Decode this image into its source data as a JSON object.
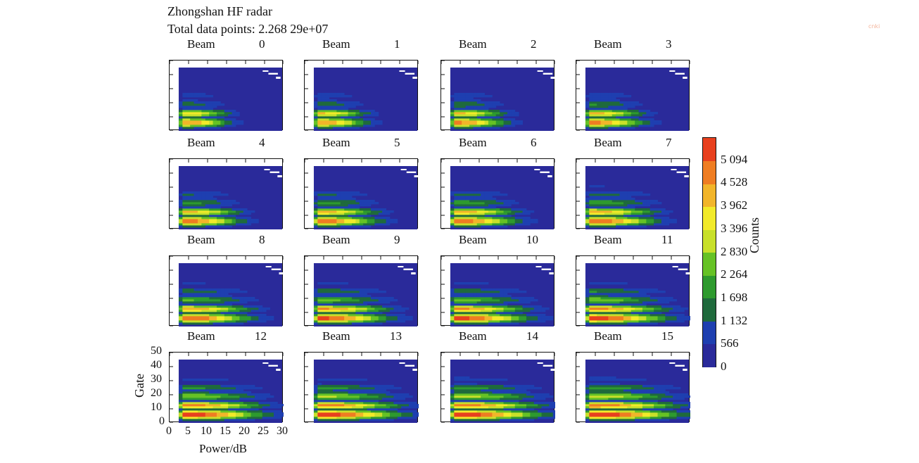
{
  "header": {
    "title": "Zhongshan HF radar",
    "subtitle": "Total data points: 2.268 29e+07"
  },
  "watermark": "cnki",
  "chart_data": {
    "type": "heatmap",
    "panel_prefix": "Beam",
    "panels": [
      0,
      1,
      2,
      3,
      4,
      5,
      6,
      7,
      8,
      9,
      10,
      11,
      12,
      13,
      14,
      15
    ],
    "xlabel": "Power/dB",
    "ylabel": "Gate",
    "xticks": [
      "0",
      "5",
      "10",
      "15",
      "20",
      "25",
      "30"
    ],
    "yticks": [
      "0",
      "10",
      "20",
      "30",
      "40",
      "50"
    ],
    "xlim": [
      0,
      30
    ],
    "ylim": [
      0,
      50
    ],
    "colorbar": {
      "label": "Counts",
      "ticks": [
        "0",
        "566",
        "1 132",
        "1 698",
        "2 264",
        "2 830",
        "3 396",
        "3 962",
        "4 528",
        "5 094"
      ],
      "vmin": 0,
      "vmax": 5660,
      "colors": [
        "#2a2a9a",
        "#1e3fb0",
        "#1f6a3c",
        "#2e9a2e",
        "#66c225",
        "#c8e02a",
        "#f2ea2a",
        "#f2b52a",
        "#ef7d22",
        "#e8401e"
      ]
    }
  }
}
